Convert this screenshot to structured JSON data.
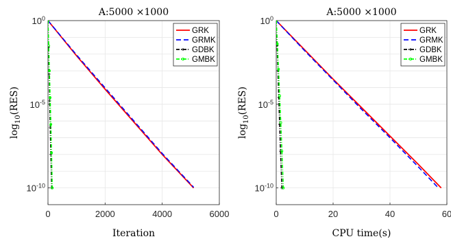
{
  "chart_data": [
    {
      "type": "line",
      "title": "A:5000 ×1000",
      "xlabel": "Iteration",
      "ylabel_prefix": "log",
      "ylabel_sub": "10",
      "ylabel_suffix": "(RES)",
      "xlim": [
        0,
        6000
      ],
      "ylim_exponent": [
        -11,
        0
      ],
      "yscale": "log",
      "grid": true,
      "legend_position": "top-right",
      "x_ticks": [
        {
          "value": 0,
          "label": "0"
        },
        {
          "value": 2000,
          "label": "2000"
        },
        {
          "value": 4000,
          "label": "4000"
        },
        {
          "value": 6000,
          "label": "6000"
        }
      ],
      "y_ticks": [
        {
          "value": 0,
          "base": "10",
          "exp": "0"
        },
        {
          "value": -5,
          "base": "10",
          "exp": "-5"
        },
        {
          "value": -10,
          "base": "10",
          "exp": "-10"
        }
      ],
      "series": [
        {
          "name": "GRK",
          "color": "#ff0000",
          "dash": "solid",
          "marker": "none",
          "x": [
            0,
            1000,
            2000,
            3000,
            4000,
            5100
          ],
          "y_log10": [
            0,
            -2.1,
            -4.1,
            -6.05,
            -8.0,
            -10.0
          ]
        },
        {
          "name": "GRMK",
          "color": "#0000ff",
          "dash": "dash",
          "marker": "none",
          "x": [
            0,
            1000,
            2000,
            3000,
            4000,
            5100
          ],
          "y_log10": [
            0,
            -2.05,
            -4.02,
            -5.98,
            -7.94,
            -9.96
          ]
        },
        {
          "name": "GDBK",
          "color": "#000000",
          "dash": "dashdot",
          "marker": "star",
          "x": [
            0,
            20,
            40,
            60,
            80,
            100,
            130
          ],
          "y_log10": [
            0,
            -1.6,
            -3.2,
            -4.8,
            -6.4,
            -8.0,
            -10.0
          ]
        },
        {
          "name": "GMBK",
          "color": "#00ff00",
          "dash": "dashdot",
          "marker": "circle",
          "x": [
            0,
            25,
            50,
            75,
            100,
            125,
            150
          ],
          "y_log10": [
            0,
            -1.5,
            -3.0,
            -4.6,
            -6.2,
            -7.9,
            -10.0
          ]
        }
      ]
    },
    {
      "type": "line",
      "title": "A:5000 ×1000",
      "xlabel": "CPU time(s)",
      "ylabel_prefix": "log",
      "ylabel_sub": "10",
      "ylabel_suffix": "(RES)",
      "xlim": [
        0,
        60
      ],
      "ylim_exponent": [
        -11,
        0
      ],
      "yscale": "log",
      "grid": true,
      "legend_position": "top-right",
      "x_ticks": [
        {
          "value": 0,
          "label": "0"
        },
        {
          "value": 20,
          "label": "20"
        },
        {
          "value": 40,
          "label": "40"
        },
        {
          "value": 60,
          "label": "60"
        }
      ],
      "y_ticks": [
        {
          "value": 0,
          "base": "10",
          "exp": "0"
        },
        {
          "value": -5,
          "base": "10",
          "exp": "-5"
        },
        {
          "value": -10,
          "base": "10",
          "exp": "-10"
        }
      ],
      "series": [
        {
          "name": "GRK",
          "color": "#ff0000",
          "dash": "solid",
          "marker": "none",
          "x": [
            0,
            10,
            20,
            30,
            40,
            50,
            58
          ],
          "y_log10": [
            0,
            -1.75,
            -3.5,
            -5.2,
            -6.9,
            -8.6,
            -10.0
          ]
        },
        {
          "name": "GRMK",
          "color": "#0000ff",
          "dash": "dash",
          "marker": "none",
          "x": [
            0,
            10,
            20,
            30,
            40,
            50,
            57
          ],
          "y_log10": [
            0,
            -1.8,
            -3.55,
            -5.3,
            -7.0,
            -8.75,
            -10.0
          ]
        },
        {
          "name": "GDBK",
          "color": "#000000",
          "dash": "dashdot",
          "marker": "star",
          "x": [
            0,
            0.3,
            0.6,
            0.9,
            1.2,
            1.5,
            2.0
          ],
          "y_log10": [
            0,
            -1.5,
            -3.0,
            -4.6,
            -6.2,
            -7.8,
            -10.0
          ]
        },
        {
          "name": "GMBK",
          "color": "#00ff00",
          "dash": "dashdot",
          "marker": "circle",
          "x": [
            0,
            0.4,
            0.8,
            1.2,
            1.6,
            2.0,
            2.5
          ],
          "y_log10": [
            0,
            -1.4,
            -2.9,
            -4.5,
            -6.1,
            -7.8,
            -10.0
          ]
        }
      ]
    }
  ]
}
